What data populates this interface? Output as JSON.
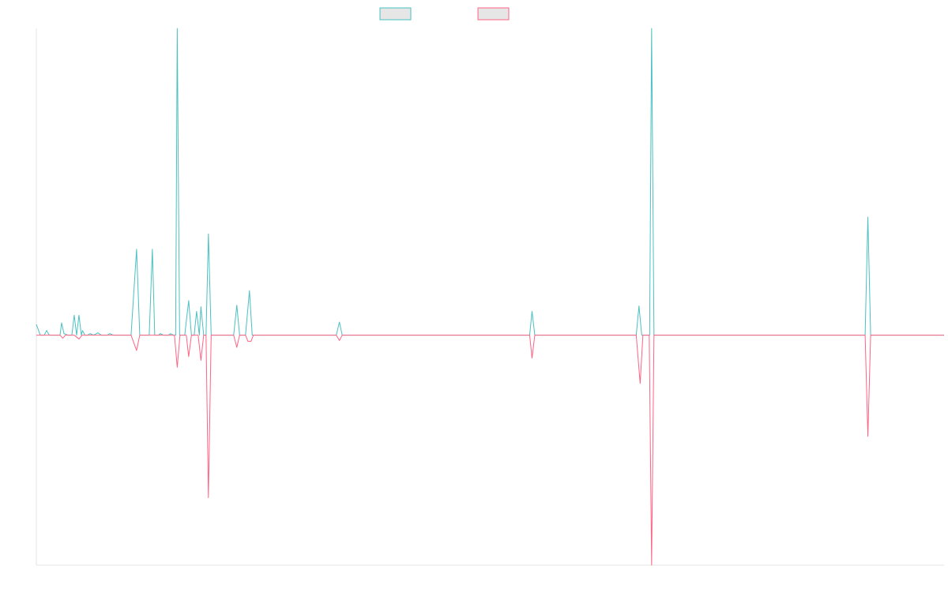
{
  "chart_data": {
    "type": "line",
    "title": "",
    "xlabel": "",
    "ylabel": "",
    "grid": false,
    "legend_position": "top-center",
    "xlim": [
      0,
      230
    ],
    "ylim": [
      -300,
      400
    ],
    "colors": {
      "series_a": "#4bc0c0",
      "series_b": "#ff6384",
      "axis": "#e5e5e5",
      "legend_fill": "#e6e6e6"
    },
    "series": [
      {
        "name": "",
        "color": "#4bc0c0",
        "points": [
          [
            0,
            14
          ],
          [
            1,
            0
          ],
          [
            2,
            0
          ],
          [
            2.6,
            6
          ],
          [
            3.3,
            0
          ],
          [
            4,
            0
          ],
          [
            5,
            0
          ],
          [
            6,
            0
          ],
          [
            6.4,
            16
          ],
          [
            7,
            2
          ],
          [
            8,
            0
          ],
          [
            9,
            0
          ],
          [
            9.6,
            26
          ],
          [
            10.2,
            0
          ],
          [
            10.8,
            26
          ],
          [
            11.4,
            0
          ],
          [
            11.7,
            6
          ],
          [
            12.3,
            0
          ],
          [
            13,
            0
          ],
          [
            13.6,
            2
          ],
          [
            14.5,
            0
          ],
          [
            15.6,
            3
          ],
          [
            16.5,
            0
          ],
          [
            18,
            0
          ],
          [
            18.6,
            2
          ],
          [
            19.5,
            0
          ],
          [
            20,
            0
          ],
          [
            24,
            0
          ],
          [
            25.4,
            112
          ],
          [
            26.2,
            0
          ],
          [
            28.6,
            0
          ],
          [
            29.4,
            112
          ],
          [
            30,
            0
          ],
          [
            31,
            0
          ],
          [
            31.4,
            2
          ],
          [
            32.2,
            0
          ],
          [
            33.5,
            0
          ],
          [
            34,
            2
          ],
          [
            34.7,
            0
          ],
          [
            35.3,
            0
          ],
          [
            35.7,
            400
          ],
          [
            36.3,
            0
          ],
          [
            37.6,
            0
          ],
          [
            38.6,
            45
          ],
          [
            39.3,
            0
          ],
          [
            40,
            0
          ],
          [
            40.6,
            31
          ],
          [
            41.3,
            0
          ],
          [
            41.7,
            37
          ],
          [
            42.4,
            0
          ],
          [
            43,
            0
          ],
          [
            43.6,
            132
          ],
          [
            44.3,
            0
          ],
          [
            45,
            0
          ],
          [
            50,
            0
          ],
          [
            50.8,
            39
          ],
          [
            51.5,
            0
          ],
          [
            53,
            0
          ],
          [
            54,
            58
          ],
          [
            54.7,
            0
          ],
          [
            56,
            0
          ],
          [
            57.9,
            0
          ],
          [
            76,
            0
          ],
          [
            76.8,
            17
          ],
          [
            77.5,
            0
          ],
          [
            100,
            0
          ],
          [
            125,
            0
          ],
          [
            125.6,
            31
          ],
          [
            126.3,
            0
          ],
          [
            150,
            0
          ],
          [
            152,
            0
          ],
          [
            152.7,
            38
          ],
          [
            153.4,
            0
          ],
          [
            155.4,
            0
          ],
          [
            155.9,
            400
          ],
          [
            156.5,
            0
          ],
          [
            175,
            0
          ],
          [
            200,
            0
          ],
          [
            210,
            0
          ],
          [
            210.7,
            154
          ],
          [
            211.4,
            0
          ],
          [
            220,
            0
          ],
          [
            230,
            0
          ]
        ]
      },
      {
        "name": "",
        "color": "#ff6384",
        "points": [
          [
            0,
            0
          ],
          [
            6,
            0
          ],
          [
            6.7,
            -4
          ],
          [
            7.4,
            0
          ],
          [
            9.6,
            0
          ],
          [
            10.8,
            -5
          ],
          [
            11.6,
            0
          ],
          [
            24,
            0
          ],
          [
            25.4,
            -20
          ],
          [
            26.2,
            0
          ],
          [
            35,
            0
          ],
          [
            35.7,
            -42
          ],
          [
            36.4,
            0
          ],
          [
            38,
            0
          ],
          [
            38.6,
            -28
          ],
          [
            39.3,
            0
          ],
          [
            41,
            0
          ],
          [
            41.7,
            -33
          ],
          [
            42.4,
            0
          ],
          [
            43,
            0
          ],
          [
            43.6,
            -212
          ],
          [
            44.3,
            0
          ],
          [
            50,
            0
          ],
          [
            50.8,
            -16
          ],
          [
            51.5,
            0
          ],
          [
            53,
            0
          ],
          [
            53.6,
            -8
          ],
          [
            54.4,
            -8
          ],
          [
            55,
            0
          ],
          [
            76,
            0
          ],
          [
            76.8,
            -7
          ],
          [
            77.5,
            0
          ],
          [
            125,
            0
          ],
          [
            125.6,
            -30
          ],
          [
            126.3,
            0
          ],
          [
            152,
            0
          ],
          [
            153,
            -63
          ],
          [
            153.7,
            0
          ],
          [
            155.3,
            0
          ],
          [
            155.9,
            -300
          ],
          [
            156.5,
            0
          ],
          [
            210,
            0
          ],
          [
            210.7,
            -132
          ],
          [
            211.4,
            0
          ],
          [
            230,
            0
          ]
        ]
      }
    ]
  }
}
